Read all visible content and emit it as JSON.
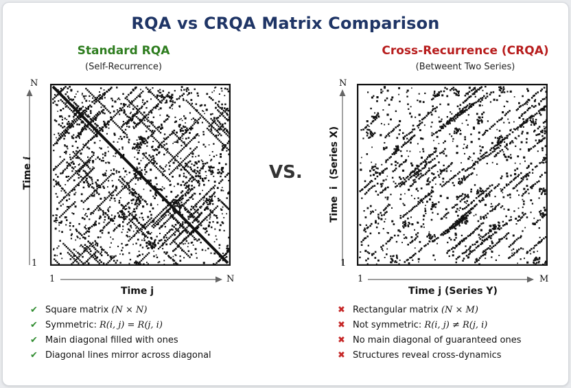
{
  "title": "RQA vs CRQA Matrix Comparison",
  "colors": {
    "title": "#1f3566",
    "standard": "#2e7d1f",
    "cross": "#b71c1c",
    "check": "#2e8b2e",
    "cross_mark": "#c62828"
  },
  "vs_label": "VS.",
  "standard": {
    "title": "Standard RQA",
    "subtitle": "(Self-Recurrence)",
    "y_top": "N",
    "y_bottom": "1",
    "x_left": "1",
    "x_right": "N",
    "y_axis_prefix": "Time ",
    "y_axis_var": "i",
    "x_axis": "Time j",
    "features": [
      {
        "icon": "check-icon",
        "text": "Square matrix ",
        "math": "(N × N)"
      },
      {
        "icon": "check-icon",
        "text": "Symmetric: ",
        "math": "R(i, j) = R(j, i)"
      },
      {
        "icon": "check-icon",
        "text": "Main diagonal filled with ones",
        "math": ""
      },
      {
        "icon": "check-icon",
        "text": "Diagonal lines mirror across diagonal",
        "math": ""
      }
    ]
  },
  "cross": {
    "title": "Cross-Recurrence (CRQA)",
    "subtitle": "(Betweent Two Series)",
    "y_top": "N",
    "y_bottom": "1",
    "x_left": "1",
    "x_right": "M",
    "y_axis": "Time  i  (Series X)",
    "x_axis": "Time j (Series Y)",
    "features": [
      {
        "icon": "x-circle-icon",
        "text": "Rectangular matrix ",
        "math": "(N × M)"
      },
      {
        "icon": "x-circle-icon",
        "text": "Not symmetric: ",
        "math": "R(i, j) ≠ R(j, i)"
      },
      {
        "icon": "x-icon",
        "text": "No main diagonal of guaranteed ones",
        "math": ""
      },
      {
        "icon": "x-icon",
        "text": "Structures reveal cross-dynamics",
        "math": ""
      }
    ]
  }
}
